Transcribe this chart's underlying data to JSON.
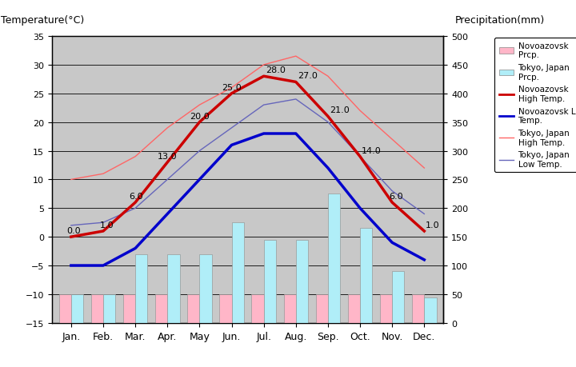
{
  "months": [
    "Jan.",
    "Feb.",
    "Mar.",
    "Apr.",
    "May",
    "Jun.",
    "Jul.",
    "Aug.",
    "Sep.",
    "Oct.",
    "Nov.",
    "Dec."
  ],
  "novoazovsk_high": [
    0.0,
    1.0,
    6.0,
    13.0,
    20.0,
    25.0,
    28.0,
    27.0,
    21.0,
    14.0,
    6.0,
    1.0
  ],
  "novoazovsk_low": [
    -5.0,
    -5.0,
    -2.0,
    4.0,
    10.0,
    16.0,
    18.0,
    18.0,
    12.0,
    5.0,
    -1.0,
    -4.0
  ],
  "tokyo_high": [
    10.0,
    11.0,
    14.0,
    19.0,
    23.0,
    26.0,
    30.0,
    31.5,
    28.0,
    22.0,
    17.0,
    12.0
  ],
  "tokyo_low": [
    2.0,
    2.5,
    5.0,
    10.0,
    15.0,
    19.0,
    23.0,
    24.0,
    20.0,
    14.0,
    8.0,
    4.0
  ],
  "novoazovsk_precip": [
    50,
    50,
    50,
    50,
    50,
    50,
    50,
    50,
    50,
    50,
    50,
    50
  ],
  "tokyo_precip": [
    50,
    50,
    120,
    120,
    120,
    175,
    145,
    145,
    225,
    165,
    90,
    45
  ],
  "temp_ylim": [
    -15,
    35
  ],
  "precip_ylim": [
    0,
    500
  ],
  "temp_yticks": [
    -15,
    -10,
    -5,
    0,
    5,
    10,
    15,
    20,
    25,
    30,
    35
  ],
  "precip_yticks": [
    0,
    50,
    100,
    150,
    200,
    250,
    300,
    350,
    400,
    450,
    500
  ],
  "novoazovsk_high_color": "#cc0000",
  "novoazovsk_low_color": "#0000cc",
  "tokyo_high_color": "#ff6666",
  "tokyo_low_color": "#6666bb",
  "novoazovsk_precip_color": "#ffb6c8",
  "tokyo_precip_color": "#b0eef8",
  "plot_bg_color": "#c8c8c8",
  "ylabel_left": "Temperature(°C)",
  "ylabel_right": "Precipitation(mm)",
  "legend_labels": [
    "Novoazovsk\nPrcp.",
    "Tokyo, Japan\nPrcp.",
    "Novoazovsk\nHigh Temp.",
    "Novoazovsk Low\nTemp.",
    "Tokyo, Japan\nHigh Temp.",
    "Tokyo, Japan\nLow Temp."
  ]
}
